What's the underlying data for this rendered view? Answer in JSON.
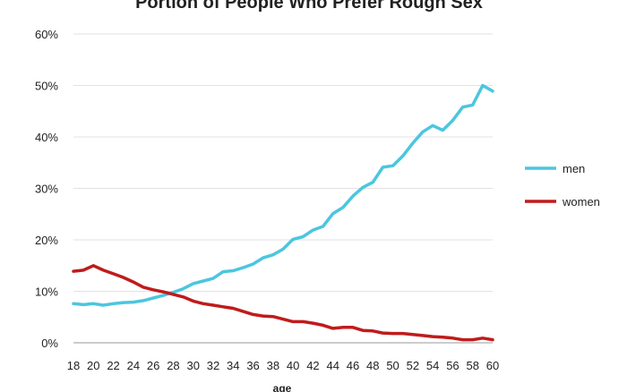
{
  "chart_data": {
    "type": "line",
    "title": "Portion of People Who Prefer Rough Sex",
    "xlabel": "age",
    "ylabel": "",
    "ylim": [
      0,
      60
    ],
    "y_ticks": [
      "0%",
      "10%",
      "20%",
      "30%",
      "40%",
      "50%",
      "60%"
    ],
    "x_tick_labels": [
      "18",
      "20",
      "22",
      "24",
      "26",
      "28",
      "30",
      "32",
      "34",
      "36",
      "38",
      "40",
      "42",
      "44",
      "46",
      "48",
      "50",
      "52",
      "54",
      "56",
      "58",
      "60"
    ],
    "x": [
      18,
      19,
      20,
      21,
      22,
      23,
      24,
      25,
      26,
      27,
      28,
      29,
      30,
      31,
      32,
      33,
      34,
      35,
      36,
      37,
      38,
      39,
      40,
      41,
      42,
      43,
      44,
      45,
      46,
      47,
      48,
      49,
      50,
      51,
      52,
      53,
      54,
      55,
      56,
      57,
      58,
      59,
      60
    ],
    "grid": true,
    "legend_position": "right",
    "series": [
      {
        "name": "men",
        "color": "#4bc6df",
        "values": [
          7.6,
          7.4,
          7.6,
          7.3,
          7.6,
          7.8,
          7.9,
          8.2,
          8.7,
          9.2,
          9.8,
          10.5,
          11.5,
          12.0,
          12.5,
          13.8,
          14.0,
          14.6,
          15.3,
          16.5,
          17.1,
          18.2,
          20.1,
          20.6,
          21.9,
          22.6,
          25.1,
          26.3,
          28.5,
          30.2,
          31.2,
          34.1,
          34.4,
          36.3,
          38.8,
          41.0,
          42.2,
          41.3,
          43.2,
          45.8,
          46.2,
          50.0,
          48.9
        ]
      },
      {
        "name": "women",
        "color": "#c01b1b",
        "values": [
          13.9,
          14.1,
          15.0,
          14.1,
          13.4,
          12.7,
          11.8,
          10.8,
          10.3,
          9.9,
          9.4,
          8.9,
          8.1,
          7.6,
          7.3,
          7.0,
          6.7,
          6.1,
          5.5,
          5.2,
          5.1,
          4.6,
          4.1,
          4.1,
          3.8,
          3.4,
          2.8,
          3.0,
          3.0,
          2.4,
          2.3,
          1.9,
          1.8,
          1.8,
          1.6,
          1.4,
          1.2,
          1.1,
          0.9,
          0.6,
          0.6,
          0.9,
          0.6
        ]
      }
    ]
  }
}
